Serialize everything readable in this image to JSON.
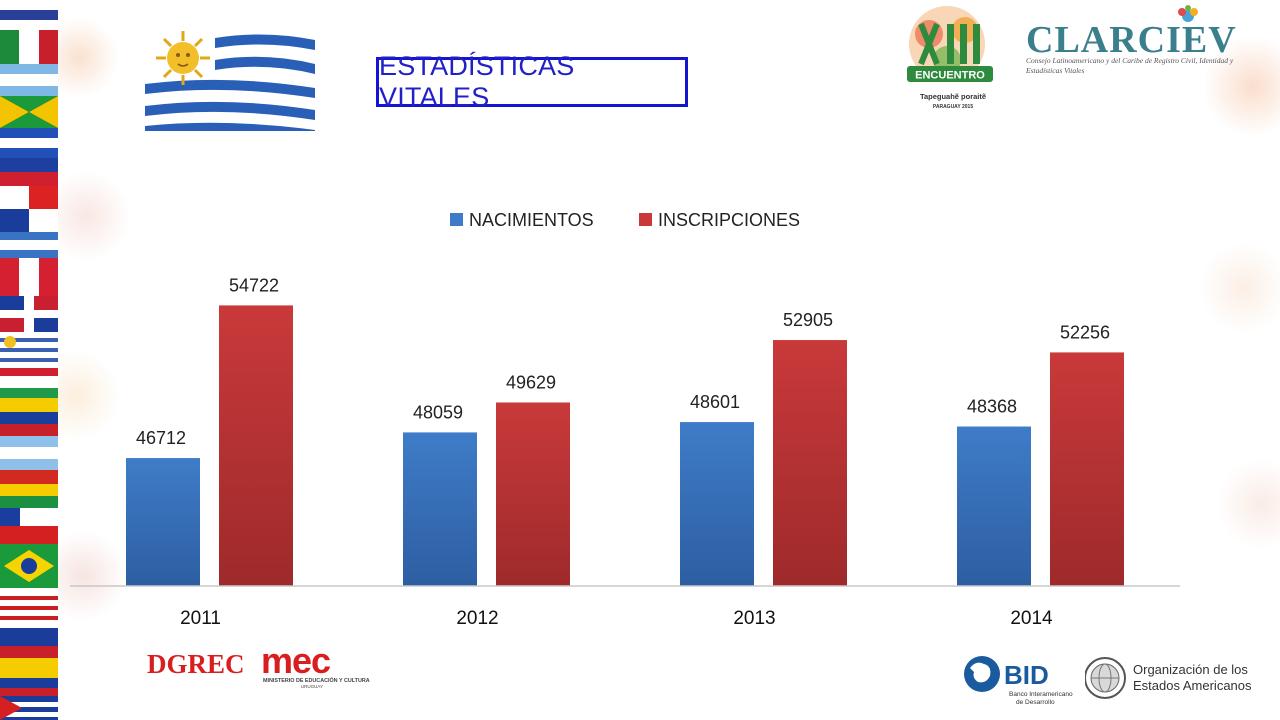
{
  "title": "ESTADÍSTICAS VITALES",
  "logos": {
    "encuentro_main": "ENCUENTRO",
    "encuentro_sub": "Tapeguahẽ poraitẽ",
    "encuentro_place": "PARAGUAY 2015",
    "clarciev_name": "CLARCIEV",
    "clarciev_tagline": "Consejo Latinoamericano y del Caribe de Registro Civil, Identidad y Estadísticas Vitales",
    "dgrec": "DGREC",
    "mec": "mec",
    "mec_sub": "MINISTERIO DE EDUCACIÓN Y CULTURA",
    "mec_country": "URUGUAY",
    "bid": "BID",
    "bid_sub1": "Banco Interamericano",
    "bid_sub2": "de Desarrollo",
    "oea_1": "Organización de los",
    "oea_2": "Estados Americanos"
  },
  "colors": {
    "nacimientos": "#3f7cc8",
    "inscripciones": "#c9393a",
    "title_border": "#1414d2"
  },
  "chart_data": {
    "type": "bar",
    "categories": [
      "2011",
      "2012",
      "2013",
      "2014"
    ],
    "series": [
      {
        "name": "NACIMIENTOS",
        "values": [
          46712,
          48059,
          48601,
          48368
        ]
      },
      {
        "name": "INSCRIPCIONES",
        "values": [
          54722,
          49629,
          52905,
          52256
        ]
      }
    ],
    "ylim": [
      40000,
      57000
    ],
    "legend": "top-center",
    "grid": false,
    "data_labels": true
  }
}
